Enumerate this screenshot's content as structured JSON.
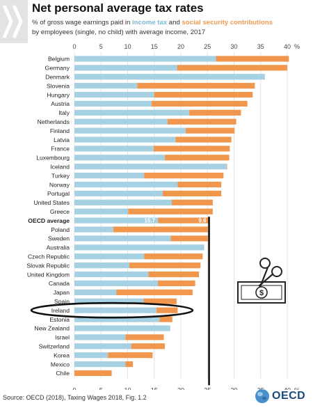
{
  "title": "Net personal average tax rates",
  "subtitle": {
    "prefix": "% of gross wage earnings paid in ",
    "income": "income tax",
    "and": " and ",
    "social": "social security contributions",
    "line2": "by employees (single, no child) with average income, 2017"
  },
  "source": "Source: OECD (2018), Taxing Wages 2018, Fig. 1.2",
  "logo": {
    "text": "OECD"
  },
  "colors": {
    "income": "#a5d1e3",
    "social": "#f0974d",
    "marker": "#111111"
  },
  "chart_data": {
    "type": "bar",
    "orientation": "horizontal",
    "stacked": true,
    "xlim": [
      0,
      40
    ],
    "ticks": [
      0,
      5,
      10,
      15,
      20,
      25,
      30,
      35,
      40
    ],
    "unit_label": "%",
    "grid": true,
    "categories": [
      "Belgium",
      "Germany",
      "Denmark",
      "Slovenia",
      "Hungary",
      "Austria",
      "Italy",
      "Netherlands",
      "Finland",
      "Latvia",
      "France",
      "Luxembourg",
      "Iceland",
      "Turkey",
      "Norway",
      "Portugal",
      "United States",
      "Greece",
      "OECD average",
      "Poland",
      "Sweden",
      "Australia",
      "Czech Republic",
      "Slovak Republic",
      "United Kingdom",
      "Canada",
      "Japan",
      "Spain",
      "Ireland",
      "Estonia",
      "New Zealand",
      "Israel",
      "Switzerland",
      "Korea",
      "Mexico",
      "Chile"
    ],
    "series": [
      {
        "name": "income tax",
        "values": [
          26.6,
          19.3,
          35.8,
          11.8,
          15.0,
          14.5,
          21.6,
          17.5,
          20.9,
          19.0,
          14.9,
          17.0,
          28.6,
          13.1,
          19.4,
          16.6,
          18.3,
          10.1,
          15.7,
          7.3,
          18.1,
          24.4,
          13.1,
          10.3,
          13.9,
          15.7,
          7.9,
          13.0,
          15.4,
          16.0,
          18.0,
          9.6,
          10.7,
          6.3,
          9.6,
          0.0
        ]
      },
      {
        "name": "social security contributions",
        "values": [
          13.7,
          20.7,
          0.0,
          22.1,
          18.5,
          18.0,
          9.7,
          12.9,
          9.2,
          10.5,
          14.3,
          12.1,
          0.1,
          14.9,
          8.2,
          11.0,
          7.7,
          15.9,
          9.6,
          17.8,
          7.0,
          0.0,
          11.0,
          13.4,
          9.5,
          7.0,
          14.3,
          6.2,
          4.0,
          2.4,
          0.0,
          7.2,
          6.3,
          8.4,
          1.4,
          7.0
        ]
      }
    ],
    "annotations": {
      "oecd_average_labels": [
        "15.7",
        "9.6"
      ],
      "bold_category": "OECD average",
      "circled_category": "Ireland",
      "vertical_marker_at": 25.3
    }
  }
}
